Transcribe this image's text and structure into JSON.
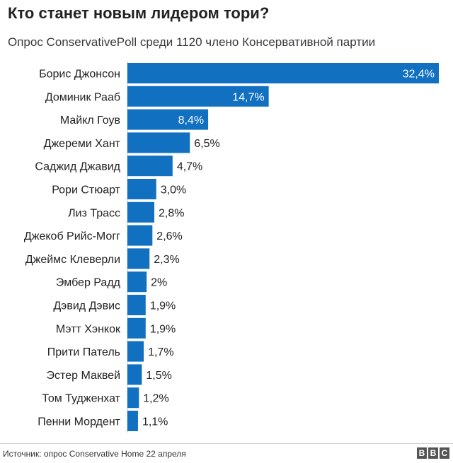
{
  "header": {
    "title": "Кто станет новым лидером тори?",
    "subtitle": "Опрос ConservativePoll среди 1120 члено Консервативной партии"
  },
  "footer": {
    "source": "Источник: опрос Conservative Home 22 апреля",
    "logo_letters": [
      "B",
      "B",
      "C"
    ]
  },
  "chart_data": {
    "type": "bar",
    "orientation": "horizontal",
    "categories": [
      "Борис Джонсон",
      "Доминик Рааб",
      "Майкл Гоув",
      "Джереми Хант",
      "Саджид Джавид",
      "Рори Стюарт",
      "Лиз Трасс",
      "Джекоб Рийс-Могг",
      "Джеймс Клеверли",
      "Эмбер Радд",
      "Дэвид Дэвис",
      "Мэтт Хэнкок",
      "Прити Патель",
      "Эстер Маквей",
      "Том Тудженхат",
      "Пенни Мордент"
    ],
    "values": [
      32.4,
      14.7,
      8.4,
      6.5,
      4.7,
      3.0,
      2.8,
      2.6,
      2.3,
      2,
      1.9,
      1.9,
      1.7,
      1.5,
      1.2,
      1.1
    ],
    "value_labels": [
      "32,4%",
      "14,7%",
      "8,4%",
      "6,5%",
      "4,7%",
      "3,0%",
      "2,8%",
      "2,6%",
      "2,3%",
      "2%",
      "1,9%",
      "1,9%",
      "1,7%",
      "1,5%",
      "1,2%",
      "1,1%"
    ],
    "title": "Кто станет новым лидером тори?",
    "subtitle": "Опрос ConservativePoll среди 1120 члено Консервативной партии",
    "xlim": [
      0,
      32.4
    ],
    "grid": false,
    "bar_color": "#1170c0",
    "label_inside_color": "#ffffff",
    "label_outside_color": "#222222"
  }
}
